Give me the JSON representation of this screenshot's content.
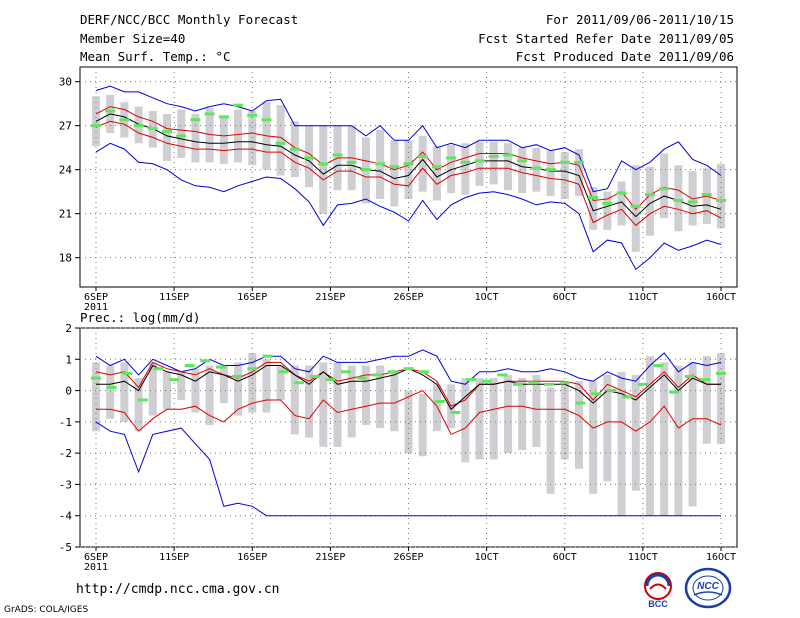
{
  "header": {
    "title": "DERF/NCC/BCC Monthly Forecast",
    "member_size": "Member Size=40",
    "variable": "Mean Surf. Temp.: °C",
    "forecast_period": "For 2011/09/06-2011/10/15",
    "started_date": "Fcst Started Refer Date 2011/09/05",
    "produced_date": "Fcst Produced Date 2011/09/06"
  },
  "footer": {
    "url": "http://cmdp.ncc.cma.gov.cn",
    "credit": "GrADS: COLA/IGES",
    "logo_bcc": "BCC",
    "logo_ncc": "NCC"
  },
  "chart_data": [
    {
      "type": "line",
      "title": "Mean Surf. Temp.: °C",
      "ylim": [
        16,
        31
      ],
      "yticks": [
        18,
        21,
        24,
        27,
        30
      ],
      "x_tick_labels": [
        "6SEP",
        "11SEP",
        "16SEP",
        "21SEP",
        "26SEP",
        "1OCT",
        "6OCT",
        "11OCT",
        "16OCT"
      ],
      "year_label": "2011",
      "days": 40,
      "series": [
        {
          "name": "max",
          "color": "#0000dd",
          "values": [
            25.2,
            25.8,
            25.4,
            24.5,
            24.4,
            24.0,
            23.3,
            22.9,
            22.8,
            22.5,
            22.9,
            23.2,
            23.5,
            23.4,
            22.7,
            21.8,
            20.2,
            21.6,
            21.7,
            22.0,
            21.5,
            21.1,
            20.5,
            21.9,
            20.6,
            21.6,
            22.1,
            22.4,
            22.5,
            22.3,
            22.0,
            21.6,
            21.8,
            21.7,
            21.0,
            18.4,
            19.2,
            19.0,
            17.2,
            18.0,
            19.0,
            18.5,
            18.8,
            19.2,
            18.9
          ]
        },
        {
          "name": "min",
          "color": "#0000dd",
          "values": [
            29.4,
            29.7,
            29.3,
            29.3,
            28.9,
            28.5,
            28.3,
            28.0,
            28.3,
            28.5,
            28.3,
            28.0,
            28.7,
            28.8,
            27.0,
            27.0,
            27.0,
            27.0,
            27.0,
            26.3,
            27.0,
            26.0,
            26.0,
            27.0,
            25.5,
            25.8,
            25.5,
            26.0,
            26.0,
            26.0,
            25.5,
            25.7,
            25.3,
            25.5,
            25.0,
            22.5,
            22.7,
            24.6,
            24.0,
            24.5,
            25.4,
            25.9,
            24.7,
            24.3,
            23.6
          ]
        },
        {
          "name": "upper",
          "color": "#dd0000",
          "values": [
            27.8,
            28.3,
            28.1,
            27.6,
            27.3,
            26.8,
            26.7,
            26.6,
            26.4,
            26.3,
            26.4,
            26.5,
            26.3,
            26.2,
            25.5,
            25.1,
            24.3,
            24.8,
            24.8,
            24.6,
            24.4,
            24.0,
            24.3,
            25.2,
            24.0,
            24.5,
            24.8,
            25.1,
            25.1,
            25.1,
            24.8,
            24.6,
            24.4,
            24.5,
            24.3,
            21.9,
            22.0,
            22.5,
            21.3,
            22.3,
            22.8,
            22.6,
            22.0,
            22.2,
            21.9
          ]
        },
        {
          "name": "lower",
          "color": "#dd0000",
          "values": [
            26.9,
            27.3,
            27.1,
            26.5,
            26.2,
            25.8,
            25.6,
            25.4,
            25.4,
            25.3,
            25.4,
            25.4,
            25.2,
            25.2,
            24.5,
            24.1,
            23.3,
            23.9,
            23.9,
            23.5,
            23.5,
            23.0,
            22.9,
            24.1,
            23.0,
            23.6,
            23.8,
            24.1,
            24.1,
            24.1,
            23.8,
            23.6,
            23.4,
            23.3,
            23.0,
            20.4,
            20.9,
            21.3,
            20.2,
            21.0,
            21.5,
            21.3,
            21.0,
            21.2,
            20.7
          ]
        },
        {
          "name": "ensemble_mean",
          "color": "#000000",
          "values": [
            27.3,
            27.8,
            27.6,
            27.1,
            26.8,
            26.3,
            26.1,
            25.9,
            25.8,
            25.8,
            25.9,
            25.9,
            25.7,
            25.6,
            25.0,
            24.6,
            23.7,
            24.3,
            24.3,
            24.0,
            23.9,
            23.4,
            23.6,
            24.7,
            23.5,
            24.0,
            24.3,
            24.6,
            24.6,
            24.6,
            24.2,
            24.1,
            23.9,
            23.9,
            23.6,
            21.2,
            21.5,
            21.8,
            20.8,
            21.7,
            22.2,
            21.9,
            21.5,
            21.6,
            21.3
          ]
        }
      ],
      "observed": [
        27.0,
        28.0,
        27.4,
        27.0,
        26.8,
        26.6,
        26.3,
        27.4,
        27.8,
        27.6,
        28.4,
        27.7,
        27.4,
        25.8,
        25.4,
        24.8,
        24.4,
        25.0,
        24.5,
        24.0,
        24.4,
        24.2,
        24.4,
        24.9,
        24.2,
        24.8,
        24.5,
        24.6,
        24.9,
        25.0,
        24.6,
        24.1,
        24.0,
        24.5,
        24.5,
        22.1,
        21.7,
        22.4,
        21.5,
        22.3,
        22.7,
        21.9,
        21.8,
        22.3,
        21.9
      ],
      "box_ranges": [
        [
          25.6,
          29.0
        ],
        [
          26.5,
          29.1
        ],
        [
          26.2,
          28.6
        ],
        [
          25.8,
          28.3
        ],
        [
          25.5,
          28.0
        ],
        [
          24.6,
          27.8
        ],
        [
          24.8,
          28.1
        ],
        [
          24.5,
          27.8
        ],
        [
          24.5,
          28.2
        ],
        [
          24.4,
          27.7
        ],
        [
          24.5,
          28.1
        ],
        [
          24.3,
          28.0
        ],
        [
          24.0,
          28.6
        ],
        [
          23.6,
          28.4
        ],
        [
          23.5,
          27.3
        ],
        [
          22.8,
          27.0
        ],
        [
          21.0,
          27.0
        ],
        [
          22.6,
          27.0
        ],
        [
          22.6,
          27.0
        ],
        [
          21.7,
          26.2
        ],
        [
          22.0,
          26.7
        ],
        [
          21.5,
          26.0
        ],
        [
          22.0,
          26.0
        ],
        [
          22.5,
          26.3
        ],
        [
          21.9,
          25.6
        ],
        [
          22.4,
          25.7
        ],
        [
          22.3,
          25.8
        ],
        [
          22.9,
          25.9
        ],
        [
          23.0,
          25.9
        ],
        [
          22.6,
          25.8
        ],
        [
          22.4,
          25.5
        ],
        [
          22.5,
          25.5
        ],
        [
          22.2,
          25.3
        ],
        [
          22.0,
          25.2
        ],
        [
          22.2,
          25.4
        ],
        [
          19.9,
          22.8
        ],
        [
          19.9,
          22.5
        ],
        [
          20.2,
          23.2
        ],
        [
          18.4,
          24.3
        ],
        [
          19.5,
          24.2
        ],
        [
          20.7,
          25.1
        ],
        [
          19.8,
          24.3
        ],
        [
          20.2,
          23.9
        ],
        [
          20.3,
          24.1
        ],
        [
          20.0,
          24.4
        ]
      ]
    },
    {
      "type": "line",
      "title": "Prec.: log(mm/d)",
      "ylim": [
        -5,
        2
      ],
      "yticks": [
        -5,
        -4,
        -3,
        -2,
        -1,
        0,
        1,
        2
      ],
      "x_tick_labels": [
        "6SEP",
        "11SEP",
        "16SEP",
        "21SEP",
        "26SEP",
        "1OCT",
        "6OCT",
        "11OCT",
        "16OCT"
      ],
      "year_label": "2011",
      "days": 40,
      "series": [
        {
          "name": "max",
          "color": "#0000dd",
          "values": [
            1.1,
            0.8,
            1.0,
            0.5,
            1.0,
            0.8,
            0.6,
            0.7,
            1.0,
            0.8,
            0.8,
            0.9,
            1.1,
            1.1,
            0.7,
            0.6,
            1.1,
            0.9,
            0.9,
            0.9,
            1.0,
            1.1,
            1.1,
            1.3,
            1.1,
            0.3,
            0.2,
            0.6,
            0.6,
            0.7,
            0.6,
            0.6,
            0.7,
            0.6,
            0.4,
            0.3,
            0.6,
            0.4,
            0.3,
            0.8,
            1.2,
            0.6,
            0.9,
            0.8,
            0.9
          ]
        },
        {
          "name": "min",
          "color": "#0000dd",
          "values": [
            -1.0,
            -1.3,
            -1.4,
            -2.6,
            -1.4,
            -1.3,
            -1.2,
            -1.7,
            -2.2,
            -3.7,
            -3.6,
            -3.7,
            -4.0,
            -4.0,
            -4.0,
            -4.0,
            -4.0,
            -4.0,
            -4.0,
            -4.0,
            -4.0,
            -4.0,
            -4.0,
            -4.0,
            -4.0,
            -4.0,
            -4.0,
            -4.0,
            -4.0,
            -4.0,
            -4.0,
            -4.0,
            -4.0,
            -4.0,
            -4.0,
            -4.0,
            -4.0,
            -4.0,
            -4.0,
            -4.0,
            -4.0,
            -4.0,
            -4.0,
            -4.0,
            -4.0
          ]
        },
        {
          "name": "upper",
          "color": "#dd0000",
          "values": [
            0.6,
            0.5,
            0.6,
            0.1,
            0.9,
            0.7,
            0.6,
            0.5,
            0.7,
            0.5,
            0.4,
            0.6,
            0.9,
            0.9,
            0.5,
            0.3,
            0.6,
            0.3,
            0.4,
            0.5,
            0.5,
            0.6,
            0.7,
            0.6,
            0.3,
            -0.5,
            -0.3,
            0.2,
            0.2,
            0.3,
            0.3,
            0.3,
            0.3,
            0.3,
            0.2,
            -0.3,
            0.2,
            0.0,
            -0.2,
            0.2,
            0.6,
            0.1,
            0.5,
            0.2,
            0.2
          ]
        },
        {
          "name": "lower",
          "color": "#dd0000",
          "values": [
            -0.6,
            -0.6,
            -0.7,
            -1.3,
            -0.9,
            -0.6,
            -0.6,
            -0.5,
            -0.8,
            -1.0,
            -0.6,
            -0.4,
            -0.3,
            -0.3,
            -0.8,
            -0.9,
            -0.3,
            -0.7,
            -0.6,
            -0.5,
            -0.4,
            -0.4,
            -0.2,
            -0.0,
            -0.5,
            -1.4,
            -1.2,
            -0.7,
            -0.6,
            -0.5,
            -0.5,
            -0.6,
            -0.6,
            -0.6,
            -0.8,
            -1.2,
            -1.0,
            -1.0,
            -1.3,
            -1.0,
            -0.5,
            -1.2,
            -0.9,
            -0.9,
            -1.1
          ]
        },
        {
          "name": "ensemble_mean",
          "color": "#000000",
          "values": [
            0.2,
            0.2,
            0.3,
            0.0,
            0.8,
            0.6,
            0.5,
            0.3,
            0.6,
            0.5,
            0.3,
            0.5,
            0.8,
            0.8,
            0.5,
            0.2,
            0.6,
            0.2,
            0.3,
            0.3,
            0.4,
            0.5,
            0.7,
            0.5,
            0.2,
            -0.6,
            -0.2,
            0.2,
            0.2,
            0.3,
            0.2,
            0.2,
            0.2,
            0.2,
            0.0,
            -0.4,
            0.0,
            -0.1,
            -0.3,
            0.1,
            0.5,
            0.0,
            0.4,
            0.2,
            0.2
          ]
        }
      ],
      "observed": [
        0.4,
        0.1,
        0.55,
        -0.3,
        0.7,
        0.35,
        0.8,
        0.95,
        0.75,
        0.45,
        0.7,
        1.1,
        0.6,
        0.25,
        0.45,
        0.35,
        0.6,
        0.4,
        0.5,
        0.6,
        0.7,
        0.6,
        -0.35,
        -0.7,
        0.35,
        0.3,
        0.5,
        0.2,
        0.25,
        0.2,
        0.25,
        -0.4,
        -0.1,
        0.0,
        -0.2,
        0.2,
        0.8,
        -0.05,
        0.45,
        0.35,
        0.55
      ],
      "box_ranges": [
        [
          -1.3,
          0.9
        ],
        [
          -0.9,
          0.8
        ],
        [
          -1.0,
          0.9
        ],
        [
          -1.3,
          0.4
        ],
        [
          -0.8,
          0.9
        ],
        [
          -0.6,
          0.6
        ],
        [
          -0.3,
          0.6
        ],
        [
          -0.7,
          0.7
        ],
        [
          -1.1,
          0.8
        ],
        [
          -0.4,
          0.8
        ],
        [
          -0.8,
          0.9
        ],
        [
          -0.7,
          1.2
        ],
        [
          -0.7,
          1.0
        ],
        [
          -0.3,
          0.8
        ],
        [
          -1.4,
          0.8
        ],
        [
          -1.5,
          0.8
        ],
        [
          -1.8,
          0.9
        ],
        [
          -1.8,
          0.9
        ],
        [
          -1.5,
          0.8
        ],
        [
          -1.1,
          0.8
        ],
        [
          -1.2,
          0.8
        ],
        [
          -1.3,
          0.6
        ],
        [
          -2.0,
          0.0
        ],
        [
          -2.1,
          -0.1
        ],
        [
          -1.3,
          0.2
        ],
        [
          -1.2,
          0.2
        ],
        [
          -2.3,
          0.4
        ],
        [
          -2.2,
          0.4
        ],
        [
          -2.2,
          0.4
        ],
        [
          -2.0,
          0.5
        ],
        [
          -1.9,
          0.4
        ],
        [
          -1.8,
          0.5
        ],
        [
          -3.3,
          0.1
        ],
        [
          -2.2,
          0.3
        ],
        [
          -2.5,
          0.3
        ],
        [
          -3.3,
          0.3
        ],
        [
          -2.9,
          0.5
        ],
        [
          -4.0,
          0.6
        ],
        [
          -3.2,
          0.5
        ],
        [
          -4.0,
          1.1
        ],
        [
          -4.0,
          0.9
        ],
        [
          -4.0,
          0.8
        ],
        [
          -3.7,
          0.9
        ],
        [
          -1.7,
          1.1
        ],
        [
          -1.7,
          1.2
        ]
      ]
    }
  ]
}
